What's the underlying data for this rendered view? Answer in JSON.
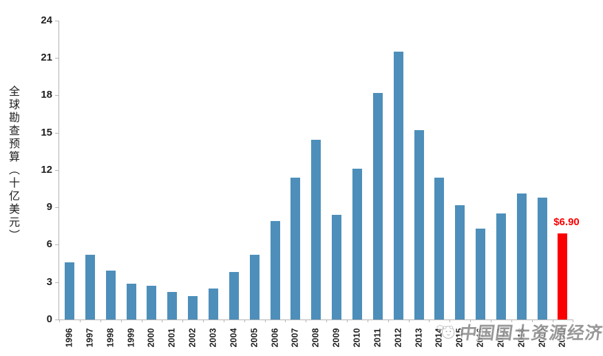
{
  "chart_data": {
    "type": "bar",
    "title": "",
    "ylabel": "全球勘查预算（十亿美元）",
    "xlabel": "",
    "categories": [
      "1996",
      "1997",
      "1998",
      "1999",
      "2000",
      "2001",
      "2002",
      "2003",
      "2004",
      "2005",
      "2006",
      "2007",
      "2008",
      "2009",
      "2010",
      "2011",
      "2012",
      "2013",
      "2014",
      "2015",
      "2016",
      "2017",
      "2018",
      "2019",
      "2020"
    ],
    "values": [
      4.6,
      5.2,
      3.9,
      2.9,
      2.7,
      2.2,
      1.9,
      2.5,
      3.8,
      5.2,
      7.9,
      11.4,
      14.4,
      8.4,
      12.1,
      18.2,
      21.5,
      15.2,
      11.4,
      9.2,
      7.3,
      8.5,
      10.1,
      9.8,
      6.9
    ],
    "ylim": [
      0,
      24
    ],
    "yticks": [
      0,
      3,
      6,
      9,
      12,
      15,
      18,
      21,
      24
    ],
    "grid": false,
    "legend": "none",
    "bar_color": "#4d8fba",
    "highlight": {
      "index": 24,
      "color": "#fa0000",
      "label": "$6.90"
    }
  },
  "watermark": {
    "text": "中国国土资源经济",
    "logo": "cartoon-mascot-logo"
  },
  "colors": {
    "axis": "#b3b3b3",
    "tick_label": "#1f1f1f",
    "watermark_text": "#8a8a8a"
  }
}
